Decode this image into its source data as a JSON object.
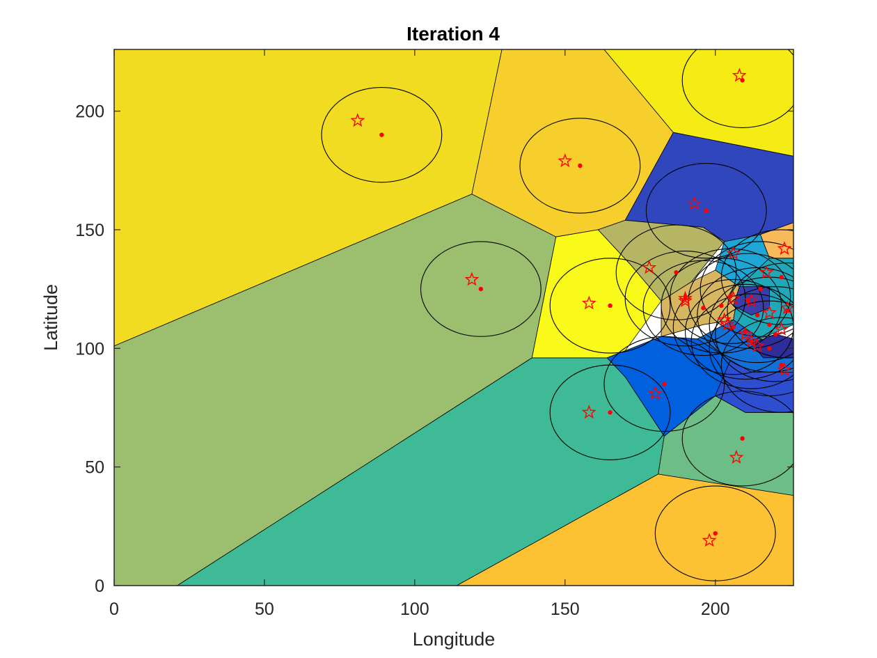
{
  "chart_data": {
    "type": "scatter",
    "title": "Iteration 4",
    "xlabel": "Longitude",
    "ylabel": "Latitude",
    "xlim": [
      0,
      226
    ],
    "ylim": [
      0,
      226
    ],
    "xticks": [
      0,
      50,
      100,
      150,
      200
    ],
    "yticks": [
      0,
      50,
      100,
      150,
      200
    ],
    "grid": false,
    "legend": "none",
    "colors": {
      "marker": "#ff0000",
      "edge": "#000000",
      "axis": "#262626"
    },
    "regions": [
      {
        "name": "region-top-left",
        "color": "#f2dc22",
        "polygon": [
          [
            0,
            226
          ],
          [
            129,
            226
          ],
          [
            119,
            165
          ],
          [
            0,
            101
          ]
        ]
      },
      {
        "name": "region-top-center",
        "color": "#f7cf2c",
        "polygon": [
          [
            129,
            226
          ],
          [
            163,
            226
          ],
          [
            186,
            191
          ],
          [
            170,
            154
          ],
          [
            161,
            150
          ],
          [
            147,
            147
          ],
          [
            119,
            165
          ]
        ]
      },
      {
        "name": "region-top-right",
        "color": "#f5ec16",
        "polygon": [
          [
            163,
            226
          ],
          [
            226,
            226
          ],
          [
            226,
            181
          ],
          [
            186,
            191
          ]
        ]
      },
      {
        "name": "region-green-left",
        "color": "#9bbf6f",
        "polygon": [
          [
            0,
            101
          ],
          [
            119,
            165
          ],
          [
            147,
            147
          ],
          [
            139,
            96
          ],
          [
            21,
            0
          ],
          [
            0,
            0
          ]
        ]
      },
      {
        "name": "region-teal-bottom",
        "color": "#3fba96",
        "polygon": [
          [
            21,
            0
          ],
          [
            139,
            96
          ],
          [
            164,
            96
          ],
          [
            170,
            88
          ],
          [
            183,
            63
          ],
          [
            181,
            47
          ],
          [
            114,
            0
          ]
        ]
      },
      {
        "name": "region-orange-bottom",
        "color": "#fcc233",
        "polygon": [
          [
            114,
            0
          ],
          [
            181,
            47
          ],
          [
            226,
            38
          ],
          [
            226,
            0
          ]
        ]
      },
      {
        "name": "region-green-bottom-right",
        "color": "#6dbd86",
        "polygon": [
          [
            181,
            47
          ],
          [
            226,
            38
          ],
          [
            226,
            73
          ],
          [
            210,
            73
          ],
          [
            200,
            80
          ],
          [
            183,
            63
          ]
        ]
      },
      {
        "name": "region-dark-blue-top",
        "color": "#3046bc",
        "polygon": [
          [
            186,
            191
          ],
          [
            226,
            181
          ],
          [
            226,
            153
          ],
          [
            215,
            148
          ],
          [
            203,
            145
          ],
          [
            196,
            151
          ],
          [
            170,
            154
          ]
        ]
      },
      {
        "name": "region-yellow-center",
        "color": "#f9f91a",
        "polygon": [
          [
            147,
            147
          ],
          [
            161,
            150
          ],
          [
            172,
            135
          ],
          [
            182,
            120
          ],
          [
            170,
            99
          ],
          [
            164,
            96
          ],
          [
            139,
            96
          ]
        ]
      },
      {
        "name": "region-olive",
        "color": "#b5b563",
        "polygon": [
          [
            161,
            150
          ],
          [
            170,
            154
          ],
          [
            196,
            151
          ],
          [
            203,
            145
          ],
          [
            192,
            128
          ],
          [
            182,
            120
          ],
          [
            172,
            135
          ]
        ]
      },
      {
        "name": "region-blue-center",
        "color": "#0060de",
        "polygon": [
          [
            164,
            96
          ],
          [
            170,
            99
          ],
          [
            182,
            105
          ],
          [
            194,
            104
          ],
          [
            205,
            95
          ],
          [
            200,
            80
          ],
          [
            183,
            63
          ],
          [
            170,
            88
          ]
        ]
      },
      {
        "name": "region-cyan",
        "color": "#1ea7d6",
        "polygon": [
          [
            203,
            145
          ],
          [
            215,
            148
          ],
          [
            218,
            138
          ],
          [
            208,
            126
          ],
          [
            200,
            133
          ]
        ]
      },
      {
        "name": "region-tan",
        "color": "#d6b65e",
        "polygon": [
          [
            182,
            120
          ],
          [
            192,
            128
          ],
          [
            200,
            133
          ],
          [
            208,
            126
          ],
          [
            206,
            112
          ],
          [
            196,
            110
          ],
          [
            182,
            105
          ]
        ]
      },
      {
        "name": "region-teal-mid",
        "color": "#1fa9b8",
        "polygon": [
          [
            206,
            112
          ],
          [
            208,
            126
          ],
          [
            218,
            138
          ],
          [
            226,
            138
          ],
          [
            226,
            110
          ],
          [
            215,
            104
          ]
        ]
      },
      {
        "name": "region-blue-lower",
        "color": "#1270d6",
        "polygon": [
          [
            194,
            104
          ],
          [
            206,
            112
          ],
          [
            215,
            104
          ],
          [
            226,
            100
          ],
          [
            226,
            90
          ],
          [
            212,
            90
          ],
          [
            205,
            95
          ]
        ]
      },
      {
        "name": "region-orange-right",
        "color": "#f7b95a",
        "polygon": [
          [
            215,
            148
          ],
          [
            226,
            153
          ],
          [
            226,
            138
          ],
          [
            218,
            138
          ]
        ]
      },
      {
        "name": "region-navy-dense",
        "color": "#3a3ea8",
        "polygon": [
          [
            208,
            126
          ],
          [
            218,
            126
          ],
          [
            218,
            117
          ],
          [
            212,
            114
          ],
          [
            206,
            118
          ]
        ]
      },
      {
        "name": "region-navy-dense-2",
        "color": "#2e2e9a",
        "polygon": [
          [
            212,
            102
          ],
          [
            220,
            106
          ],
          [
            226,
            104
          ],
          [
            226,
            96
          ],
          [
            216,
            96
          ]
        ]
      },
      {
        "name": "region-dark-blue-lower",
        "color": "#2d4fcf",
        "polygon": [
          [
            200,
            80
          ],
          [
            205,
            95
          ],
          [
            212,
            90
          ],
          [
            226,
            90
          ],
          [
            226,
            73
          ],
          [
            210,
            73
          ]
        ]
      }
    ],
    "circle_radius": 20,
    "series": [
      {
        "type": "circle",
        "x": [
          89,
          155,
          122,
          165,
          209,
          197,
          187,
          183,
          165,
          200,
          209,
          211,
          214,
          218,
          202,
          210,
          215,
          222,
          224,
          196,
          205,
          218,
          212,
          220,
          206,
          190,
          222
        ],
        "y": [
          190,
          177,
          125,
          118,
          213,
          158,
          132,
          85,
          73,
          22,
          62,
          120,
          114,
          110,
          118,
          107,
          125,
          130,
          116,
          117,
          122,
          100,
          103,
          106,
          109,
          121,
          93
        ]
      },
      {
        "type": "star",
        "x": [
          81,
          150,
          119,
          158,
          208,
          193,
          178,
          180,
          158,
          198,
          207,
          206,
          212,
          218,
          204,
          210,
          217,
          223,
          224,
          190,
          206,
          214,
          212,
          222,
          203,
          190,
          223
        ],
        "y": [
          196,
          179,
          129,
          119,
          215,
          161,
          134,
          81,
          73,
          19,
          54,
          140,
          120,
          115,
          110,
          106,
          132,
          142,
          117,
          121,
          121,
          101,
          103,
          108,
          112,
          120,
          91
        ]
      }
    ]
  }
}
